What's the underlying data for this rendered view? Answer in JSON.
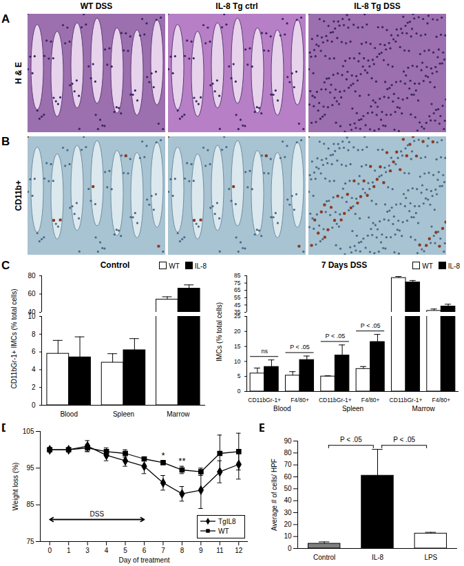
{
  "image_grid": {
    "columns": [
      "WT DSS",
      "IL-8 Tg ctrl",
      "IL-8 Tg DSS"
    ],
    "rows": [
      {
        "panel": "A",
        "label": "H & E"
      },
      {
        "panel": "B",
        "label": "CD11b+"
      }
    ]
  },
  "chart_data": [
    {
      "panel": "C",
      "type": "bar",
      "title": "Control",
      "y_label": "CD11bGr-1+ IMCs (% total cells)",
      "categories": [
        "Blood",
        "Spleen",
        "Marrow"
      ],
      "series": [
        {
          "name": "WT",
          "color": "#ffffff",
          "values": [
            5.8,
            4.8,
            54
          ],
          "errors": [
            1.5,
            1.0,
            3
          ]
        },
        {
          "name": "IL-8",
          "color": "#000000",
          "values": [
            5.4,
            6.2,
            66
          ],
          "errors": [
            2.3,
            1.3,
            4
          ]
        }
      ],
      "y_segments": [
        {
          "ylim": [
            0,
            10
          ],
          "yticks": [
            0,
            2,
            4,
            6,
            8,
            10
          ]
        },
        {
          "ylim": [
            40,
            80
          ],
          "yticks": [
            40,
            60,
            80
          ]
        }
      ],
      "legend": "top-right"
    },
    {
      "type": "bar",
      "title": "7 Days DSS",
      "y_label": "IMCs (% total cells)",
      "categories": [
        "CD11bGr-1+",
        "F4/80+",
        "CD11bGr-1+",
        "F4/80+",
        "CD11bGr-1+",
        "F4/80+"
      ],
      "category_groups": [
        "Blood",
        "Blood",
        "Spleen",
        "Spleen",
        "Marrow",
        "Marrow"
      ],
      "series": [
        {
          "name": "WT",
          "color": "#ffffff",
          "values": [
            6,
            5.3,
            5,
            7.5,
            82,
            37
          ],
          "errors": [
            1.8,
            1.3,
            0.2,
            0.8,
            2,
            2.5
          ]
        },
        {
          "name": "IL-8",
          "color": "#000000",
          "values": [
            8.2,
            10.5,
            12,
            16.5,
            76,
            43
          ],
          "errors": [
            2.3,
            1.3,
            3.5,
            2.5,
            2.5,
            3
          ]
        }
      ],
      "y_segments": [
        {
          "ylim": [
            0,
            25
          ],
          "yticks": [
            0,
            5,
            10,
            15,
            20,
            25
          ]
        },
        {
          "ylim": [
            35,
            85
          ],
          "yticks": [
            35,
            45,
            55,
            65,
            75,
            85
          ]
        }
      ],
      "annotations": [
        {
          "category_index": 0,
          "text": "ns"
        },
        {
          "category_index": 1,
          "text": "P < .05"
        },
        {
          "category_index": 2,
          "text": "P < .05"
        },
        {
          "category_index": 3,
          "text": "P < .05"
        }
      ],
      "legend": "top-right"
    },
    {
      "panel": "D",
      "type": "line",
      "x_label": "Day of treatment",
      "y_label": "Weight loss (%)",
      "categories": [
        "0",
        "1",
        "3",
        "4",
        "5",
        "6",
        "7",
        "8",
        "9",
        "11",
        "12"
      ],
      "series": [
        {
          "name": "TgIL8",
          "color": "#000000",
          "marker": "diamond",
          "values": [
            100,
            100,
            101,
            98.5,
            97,
            95.5,
            91,
            88,
            89,
            94,
            96
          ],
          "errors": [
            0.5,
            0.5,
            1.5,
            1.5,
            1.5,
            2,
            2,
            2,
            5,
            3,
            4
          ]
        },
        {
          "name": "WT",
          "color": "#000000",
          "marker": "square",
          "values": [
            100,
            100,
            100.5,
            99.5,
            99,
            97.5,
            96.5,
            94.5,
            94,
            99,
            99.5
          ],
          "errors": [
            0.3,
            0.3,
            1,
            1,
            1,
            0.5,
            0.5,
            1,
            1,
            5,
            5
          ]
        }
      ],
      "ylim": [
        75,
        105
      ],
      "yticks": [
        75,
        85,
        95,
        105
      ],
      "legend": "bottom-right",
      "annotations": [
        {
          "text": "DSS",
          "from": "0",
          "to": "6"
        },
        {
          "text": "*",
          "category": "7"
        },
        {
          "text": "**",
          "category": "8"
        }
      ]
    },
    {
      "panel": "E",
      "type": "bar",
      "y_label": "Average # of cells/ HPF",
      "categories": [
        "Control",
        "IL-8",
        "LPS"
      ],
      "values": [
        4,
        61,
        12.5
      ],
      "errors": [
        1.5,
        22,
        1
      ],
      "colors": [
        "#7f7f7f",
        "#000000",
        "#ffffff"
      ],
      "ylim": [
        0,
        90
      ],
      "yticks": [
        0,
        10,
        20,
        30,
        40,
        50,
        60,
        70,
        80,
        90
      ],
      "annotations": [
        {
          "from": "Control",
          "to": "IL-8",
          "text": "P < .05"
        },
        {
          "from": "IL-8",
          "to": "LPS",
          "text": "P < .05"
        }
      ]
    }
  ]
}
